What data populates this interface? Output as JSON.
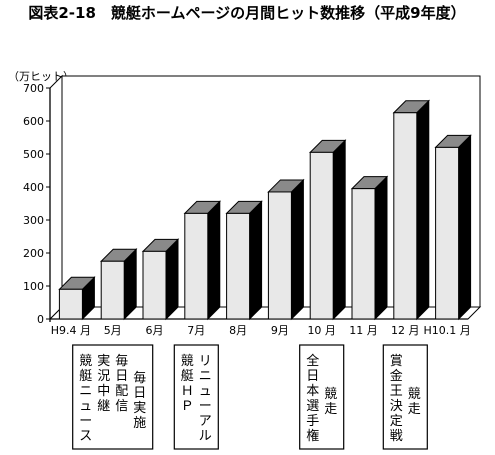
{
  "chart_data": {
    "type": "bar",
    "title": "図表2-18　競艇ホームページの月間ヒット数推移（平成9年度）",
    "ylabel": "（万ヒット）",
    "xlabel": "",
    "ylim": [
      0,
      700
    ],
    "yticks": [
      0,
      100,
      200,
      300,
      400,
      500,
      600,
      700
    ],
    "grid": false,
    "categories": [
      "H9.4 月",
      "5月",
      "6月",
      "7月",
      "8月",
      "9月",
      "10 月",
      "11 月",
      "12 月",
      "H10.1 月"
    ],
    "values": [
      90,
      175,
      205,
      320,
      320,
      385,
      505,
      395,
      625,
      520
    ],
    "annotations": [
      {
        "category_index": 1,
        "lines": [
          "競艇ニュース",
          "実況中継",
          "毎日配信",
          "毎日実施"
        ]
      },
      {
        "category_index": 3,
        "lines": [
          "競艇ＨＰ",
          "リニューアル"
        ]
      },
      {
        "category_index": 6,
        "lines": [
          "全日本選手権",
          "競走"
        ]
      },
      {
        "category_index": 8,
        "lines": [
          "賞金王決定戦",
          "競走"
        ]
      }
    ]
  },
  "colors": {
    "bar_front": "#e8e8e8",
    "bar_top": "#8a8a8a",
    "bar_side": "#000000",
    "wall": "#ffffff",
    "line": "#000000"
  }
}
